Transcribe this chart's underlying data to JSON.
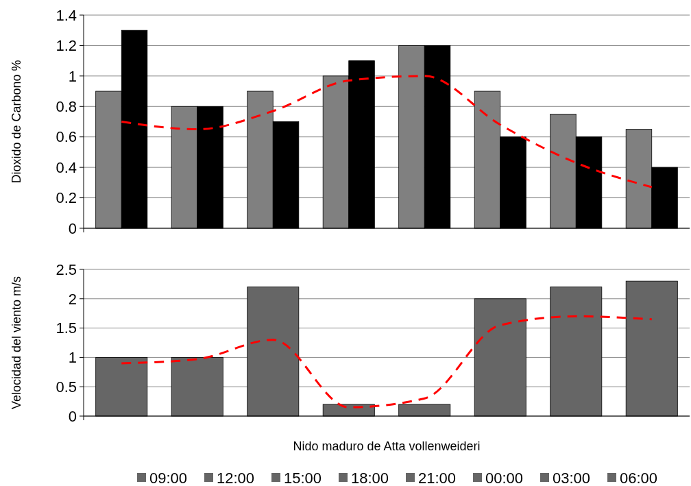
{
  "chart_data": [
    {
      "type": "bar",
      "ylabel": "Dioxido de Carbono %",
      "categories": [
        null,
        null,
        null,
        null,
        null,
        null,
        null,
        null
      ],
      "ylim": [
        0,
        1.4
      ],
      "yticks": [
        0,
        0.2,
        0.4,
        0.6,
        0.8,
        1,
        1.2,
        1.4
      ],
      "grid": "y",
      "series": [
        {
          "color": "#808080",
          "values": [
            0.9,
            0.8,
            0.9,
            1.0,
            1.2,
            0.9,
            0.75,
            0.65
          ]
        },
        {
          "color": "#000000",
          "values": [
            1.3,
            0.8,
            0.7,
            1.1,
            1.2,
            0.6,
            0.6,
            0.4
          ]
        },
        {
          "type": "line",
          "color": "#ff0000",
          "line_style": "dashed",
          "marker": "none",
          "values": [
            0.7,
            0.65,
            0.77,
            0.97,
            1.0,
            0.68,
            0.43,
            0.27
          ]
        }
      ]
    },
    {
      "type": "bar",
      "ylabel": "Velocidad del viento m/s",
      "xlabel": "Nido maduro de Atta vollenweideri",
      "categories": [
        null,
        null,
        null,
        null,
        null,
        null,
        null,
        null
      ],
      "ylim": [
        0,
        2.5
      ],
      "yticks": [
        0,
        0.5,
        1,
        1.5,
        2,
        2.5
      ],
      "grid": "y",
      "stacked": true,
      "legend": "bottom",
      "series": [
        {
          "name": "09:00",
          "color": "#666666",
          "values": [
            1,
            null,
            null,
            null,
            null,
            null,
            null,
            null
          ]
        },
        {
          "name": "12:00",
          "color": "#666666",
          "values": [
            null,
            1,
            null,
            null,
            null,
            null,
            null,
            null
          ]
        },
        {
          "name": "15:00",
          "color": "#666666",
          "values": [
            null,
            null,
            2.2,
            null,
            null,
            null,
            null,
            null
          ]
        },
        {
          "name": "18:00",
          "color": "#666666",
          "values": [
            null,
            null,
            null,
            0.2,
            null,
            null,
            null,
            null
          ]
        },
        {
          "name": "21:00",
          "color": "#666666",
          "values": [
            null,
            null,
            null,
            null,
            0.2,
            null,
            null,
            null
          ]
        },
        {
          "name": "00:00",
          "color": "#666666",
          "values": [
            null,
            null,
            null,
            null,
            null,
            2,
            null,
            null
          ]
        },
        {
          "name": "03:00",
          "color": "#666666",
          "values": [
            null,
            null,
            null,
            null,
            null,
            null,
            2.2,
            null
          ]
        },
        {
          "name": "06:00",
          "color": "#666666",
          "values": [
            null,
            null,
            null,
            null,
            null,
            null,
            null,
            2.3
          ]
        },
        {
          "type": "line",
          "color": "#ff0000",
          "line_style": "dashed",
          "marker": "none",
          "values": [
            0.9,
            0.97,
            1.3,
            0.15,
            0.3,
            1.55,
            1.7,
            1.65
          ]
        }
      ]
    }
  ]
}
